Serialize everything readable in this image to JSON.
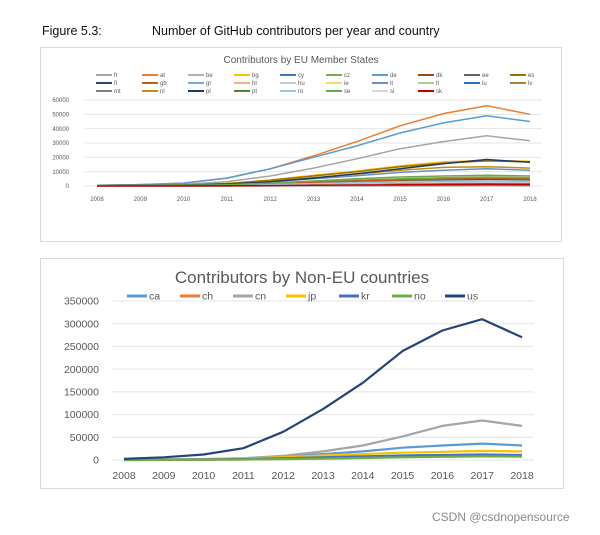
{
  "figure": {
    "label": "Figure 5.3:",
    "title": "Number of GitHub contributors per year and country"
  },
  "watermark": "CSDN @csdnopensource",
  "chart_data": [
    {
      "type": "line",
      "title": "Contributors by EU Member States",
      "x": [
        "2008",
        "2009",
        "2010",
        "2011",
        "2012",
        "2013",
        "2014",
        "2015",
        "2016",
        "2017",
        "2018"
      ],
      "yticks": [
        "0",
        "10000",
        "20000",
        "30000",
        "40000",
        "50000",
        "60000"
      ],
      "ylim": [
        0,
        60000
      ],
      "legend": "top",
      "grid": true,
      "series": [
        {
          "name": "fr",
          "color": "#a5a5a5",
          "values": [
            300,
            600,
            1200,
            3000,
            7000,
            12500,
            19000,
            26000,
            31000,
            35000,
            31500
          ]
        },
        {
          "name": "at",
          "color": "#ed7d31",
          "values": [
            500,
            1000,
            2000,
            5500,
            12000,
            21000,
            31000,
            42000,
            50500,
            56000,
            50000
          ]
        },
        {
          "name": "be",
          "color": "#b0b0b0",
          "values": [
            100,
            200,
            400,
            800,
            1500,
            2500,
            3500,
            4500,
            5000,
            5500,
            5000
          ]
        },
        {
          "name": "bg",
          "color": "#ffc000",
          "values": [
            200,
            400,
            800,
            1800,
            4200,
            7500,
            10500,
            14000,
            16800,
            17800,
            17200
          ]
        },
        {
          "name": "cy",
          "color": "#4472c4",
          "values": [
            20,
            40,
            80,
            150,
            300,
            500,
            700,
            900,
            1000,
            1100,
            1000
          ]
        },
        {
          "name": "cz",
          "color": "#70ad47",
          "values": [
            100,
            200,
            400,
            800,
            1600,
            2800,
            4000,
            5000,
            5800,
            6300,
            5800
          ]
        },
        {
          "name": "de",
          "color": "#5b9bd5",
          "values": [
            500,
            1000,
            2000,
            5500,
            12000,
            20000,
            28000,
            37000,
            44000,
            49000,
            45000
          ]
        },
        {
          "name": "dk",
          "color": "#9e480e",
          "values": [
            80,
            150,
            300,
            600,
            1200,
            2000,
            2800,
            3500,
            4000,
            4300,
            4000
          ]
        },
        {
          "name": "ee",
          "color": "#636363",
          "values": [
            30,
            60,
            120,
            250,
            500,
            800,
            1100,
            1400,
            1600,
            1700,
            1600
          ]
        },
        {
          "name": "es",
          "color": "#997300",
          "values": [
            200,
            400,
            800,
            1700,
            4000,
            7000,
            10000,
            13500,
            16000,
            17500,
            16800
          ]
        },
        {
          "name": "fi",
          "color": "#264478",
          "values": [
            80,
            150,
            300,
            600,
            1200,
            2000,
            2800,
            3500,
            4000,
            4300,
            4000
          ]
        },
        {
          "name": "gb",
          "color": "#c55a11",
          "values": [
            100,
            200,
            400,
            800,
            1500,
            2500,
            3500,
            4200,
            4800,
            5200,
            4800
          ]
        },
        {
          "name": "gr",
          "color": "#7fa7d9",
          "values": [
            50,
            100,
            200,
            400,
            800,
            1300,
            1800,
            2300,
            2600,
            2800,
            2600
          ]
        },
        {
          "name": "hr",
          "color": "#f4b183",
          "values": [
            20,
            40,
            80,
            150,
            300,
            500,
            700,
            900,
            1000,
            1100,
            1000
          ]
        },
        {
          "name": "hu",
          "color": "#c9c9c9",
          "values": [
            50,
            100,
            200,
            400,
            800,
            1300,
            1800,
            2300,
            2600,
            2800,
            2600
          ]
        },
        {
          "name": "ie",
          "color": "#ffd966",
          "values": [
            60,
            120,
            250,
            500,
            1000,
            1600,
            2200,
            2800,
            3200,
            3500,
            3200
          ]
        },
        {
          "name": "it",
          "color": "#698ed0",
          "values": [
            150,
            300,
            600,
            1300,
            3000,
            5000,
            7200,
            9500,
            11000,
            12000,
            11000
          ]
        },
        {
          "name": "lt",
          "color": "#a9d18e",
          "values": [
            20,
            40,
            80,
            150,
            300,
            500,
            700,
            900,
            1000,
            1100,
            1000
          ]
        },
        {
          "name": "lu",
          "color": "#2e75b6",
          "values": [
            10,
            20,
            40,
            80,
            150,
            250,
            350,
            450,
            500,
            550,
            500
          ]
        },
        {
          "name": "lv",
          "color": "#b97a3a",
          "values": [
            10,
            20,
            40,
            80,
            150,
            250,
            350,
            450,
            500,
            550,
            500
          ]
        },
        {
          "name": "mt",
          "color": "#7f7f7f",
          "values": [
            5,
            10,
            20,
            40,
            80,
            120,
            160,
            200,
            230,
            250,
            230
          ]
        },
        {
          "name": "nl",
          "color": "#bf9000",
          "values": [
            150,
            300,
            600,
            1400,
            3300,
            5700,
            8300,
            11000,
            13000,
            13500,
            12500
          ]
        },
        {
          "name": "pl",
          "color": "#203864",
          "values": [
            150,
            300,
            600,
            1300,
            3000,
            5500,
            8500,
            12000,
            15500,
            18500,
            16500
          ]
        },
        {
          "name": "pt",
          "color": "#548235",
          "values": [
            60,
            120,
            250,
            500,
            1000,
            1700,
            2400,
            3000,
            3400,
            3700,
            3400
          ]
        },
        {
          "name": "ro",
          "color": "#9dc3e6",
          "values": [
            60,
            120,
            250,
            500,
            1000,
            1700,
            2400,
            3000,
            3400,
            3700,
            3400
          ]
        },
        {
          "name": "se",
          "color": "#6aa84f",
          "values": [
            100,
            200,
            400,
            900,
            2000,
            3500,
            5000,
            6300,
            7000,
            7500,
            7000
          ]
        },
        {
          "name": "si",
          "color": "#d9d9d9",
          "values": [
            20,
            40,
            80,
            150,
            300,
            500,
            700,
            900,
            1000,
            1100,
            1000
          ]
        },
        {
          "name": "sk",
          "color": "#c00000",
          "values": [
            20,
            40,
            80,
            150,
            300,
            500,
            700,
            900,
            1000,
            1100,
            1000
          ]
        }
      ]
    },
    {
      "type": "line",
      "title": "Contributors by Non-EU countries",
      "x": [
        "2008",
        "2009",
        "2010",
        "2011",
        "2012",
        "2013",
        "2014",
        "2015",
        "2016",
        "2017",
        "2018"
      ],
      "yticks": [
        "0",
        "50000",
        "100000",
        "150000",
        "200000",
        "250000",
        "300000",
        "350000"
      ],
      "ylim": [
        0,
        350000
      ],
      "legend": "top",
      "grid": true,
      "series": [
        {
          "name": "ca",
          "color": "#5b9bd5",
          "values": [
            500,
            1000,
            2000,
            4000,
            8000,
            13000,
            19000,
            27000,
            32000,
            36000,
            32000
          ]
        },
        {
          "name": "ch",
          "color": "#ed7d31",
          "values": [
            100,
            300,
            600,
            1200,
            2500,
            4000,
            5500,
            7000,
            8000,
            9000,
            8500
          ]
        },
        {
          "name": "cn",
          "color": "#a5a5a5",
          "values": [
            500,
            1000,
            2000,
            4000,
            9000,
            19000,
            32000,
            52000,
            75000,
            87000,
            75000
          ]
        },
        {
          "name": "jp",
          "color": "#ffc000",
          "values": [
            300,
            800,
            1500,
            3000,
            6000,
            10000,
            13000,
            16000,
            18000,
            20000,
            19000
          ]
        },
        {
          "name": "kr",
          "color": "#4472c4",
          "values": [
            200,
            500,
            1000,
            2000,
            4000,
            6000,
            8000,
            10000,
            11000,
            12000,
            11000
          ]
        },
        {
          "name": "no",
          "color": "#70ad47",
          "values": [
            100,
            200,
            500,
            1000,
            2000,
            3000,
            4500,
            6000,
            7000,
            8000,
            7500
          ]
        },
        {
          "name": "us",
          "color": "#264478",
          "values": [
            2500,
            6000,
            12000,
            26000,
            62000,
            112000,
            170000,
            240000,
            285000,
            310000,
            270000
          ]
        }
      ]
    }
  ]
}
